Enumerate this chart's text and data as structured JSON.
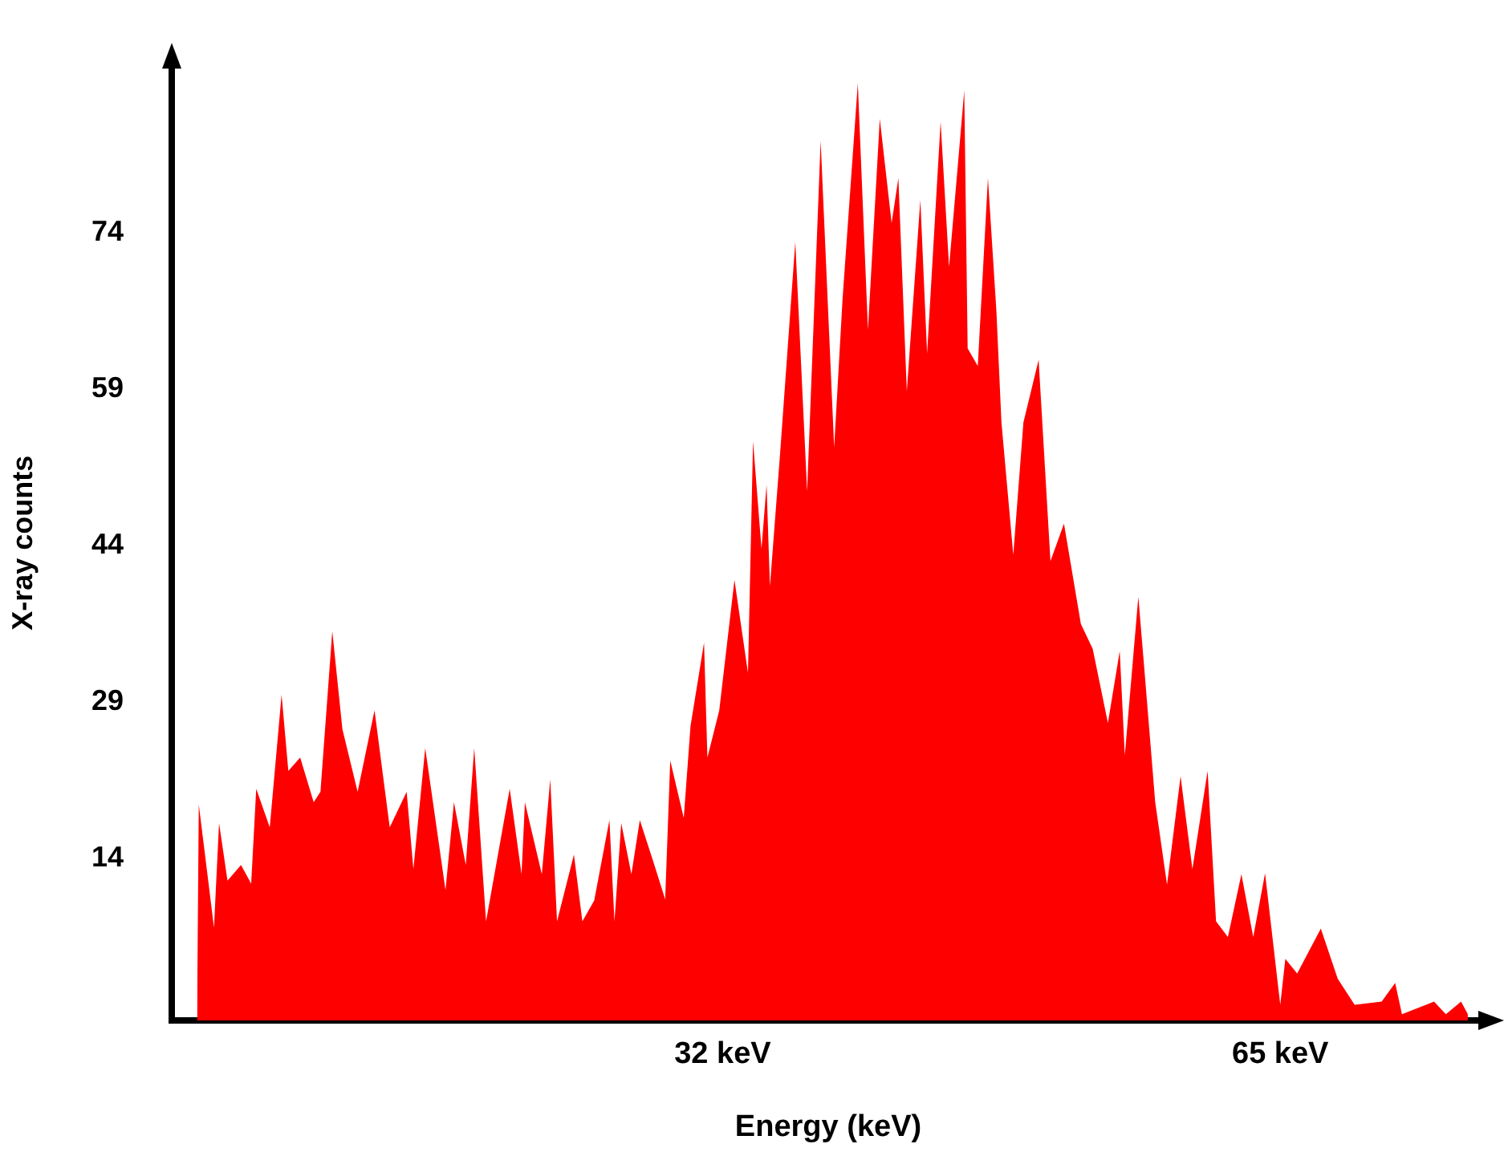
{
  "chart_data": {
    "type": "area",
    "xlabel": "Energy (keV)",
    "ylabel": "X-ray counts",
    "xlim": [
      -0.6,
      77.1
    ],
    "ylim": [
      -1.5,
      90
    ],
    "xticks": [
      {
        "value": 32,
        "label": "32 keV"
      },
      {
        "value": 65,
        "label": "65 keV"
      }
    ],
    "yticks": [
      14,
      29,
      44,
      59,
      74
    ],
    "grid": false,
    "legend": false,
    "series": [
      {
        "color": "#ff0000",
        "x": [
          0.9,
          1.0,
          1.9,
          2.2,
          2.7,
          3.5,
          4.1,
          4.4,
          5.2,
          5.9,
          6.3,
          7.0,
          7.8,
          8.2,
          8.9,
          9.5,
          10.4,
          11.4,
          12.3,
          13.3,
          13.7,
          14.4,
          15.6,
          16.1,
          16.8,
          17.3,
          18.0,
          19.4,
          20.1,
          20.3,
          21.3,
          21.8,
          22.2,
          23.2,
          23.7,
          24.4,
          25.3,
          25.6,
          26.0,
          26.6,
          27.1,
          27.9,
          28.6,
          28.9,
          29.7,
          30.1,
          30.9,
          31.1,
          31.8,
          32.7,
          33.5,
          33.8,
          34.3,
          34.6,
          34.8,
          35.4,
          36.3,
          37.0,
          37.8,
          38.6,
          39.1,
          40.0,
          40.6,
          41.3,
          42.0,
          42.4,
          42.9,
          43.7,
          44.1,
          44.9,
          45.4,
          46.3,
          46.5,
          47.1,
          47.7,
          48.2,
          48.5,
          49.2,
          49.8,
          50.7,
          51.4,
          52.2,
          53.2,
          53.9,
          54.8,
          55.5,
          55.8,
          56.6,
          57.0,
          57.6,
          58.3,
          59.1,
          59.8,
          60.7,
          61.2,
          61.9,
          62.7,
          63.4,
          64.1,
          65.0,
          65.3,
          66.0,
          67.4,
          68.4,
          69.4,
          71.0,
          71.8,
          72.2,
          74.1,
          74.8,
          75.7,
          76.1
        ],
        "values": [
          -0.9,
          19.2,
          7.4,
          17.4,
          11.9,
          13.4,
          11.6,
          20.7,
          17.0,
          29.7,
          22.4,
          23.7,
          19.4,
          20.4,
          35.8,
          26.4,
          20.4,
          28.2,
          17.0,
          20.4,
          13.0,
          24.6,
          11.0,
          19.4,
          13.4,
          24.6,
          8.0,
          20.7,
          12.5,
          19.4,
          12.5,
          21.6,
          8.0,
          14.4,
          8.0,
          10.0,
          17.7,
          8.0,
          17.4,
          12.5,
          17.7,
          13.7,
          10.1,
          23.4,
          17.9,
          26.7,
          34.7,
          23.7,
          28.2,
          40.7,
          31.8,
          54.0,
          43.7,
          49.8,
          40.1,
          52.8,
          73.1,
          49.2,
          82.8,
          53.4,
          67.7,
          88.3,
          64.7,
          84.9,
          74.9,
          79.2,
          58.8,
          77.1,
          62.4,
          84.6,
          70.7,
          87.6,
          62.9,
          61.2,
          79.2,
          66.5,
          55.8,
          43.1,
          55.8,
          61.8,
          42.5,
          46.1,
          36.5,
          34.1,
          27.0,
          33.9,
          23.9,
          39.1,
          31.3,
          19.4,
          11.5,
          21.9,
          13.0,
          22.4,
          8.0,
          6.5,
          12.5,
          6.5,
          12.6,
          0.0,
          4.4,
          3.0,
          7.3,
          2.5,
          0.0,
          0.3,
          2.1,
          -0.9,
          0.3,
          -0.9,
          0.3,
          -0.9
        ]
      }
    ]
  }
}
